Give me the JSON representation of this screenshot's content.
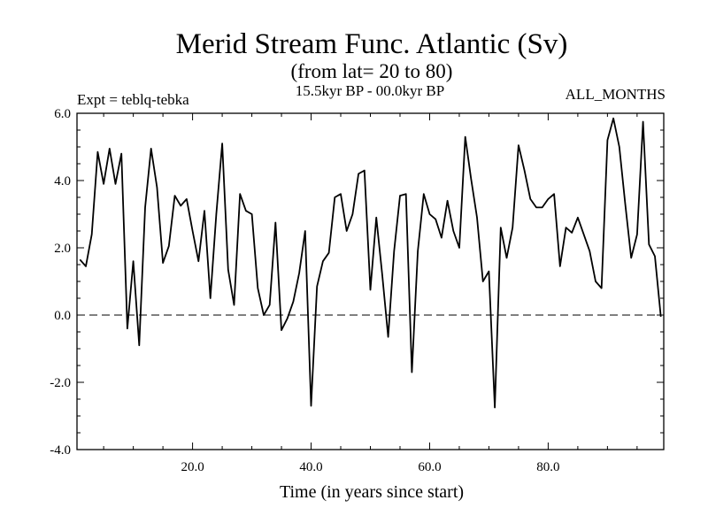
{
  "chart_data": {
    "type": "line",
    "title": "Merid Stream Func. Atlantic (Sv)",
    "subtitle": "(from lat= 20 to 80)",
    "experiment": "Expt = teblq-tebka",
    "period": "15.5kyr BP - 00.0kyr BP",
    "months": "ALL_MONTHS",
    "xlabel": "Time (in years since start)",
    "ylabel": "",
    "xlim": [
      0.5,
      99.5
    ],
    "ylim": [
      -4.0,
      6.0
    ],
    "x_ticks": [
      20.0,
      40.0,
      60.0,
      80.0
    ],
    "x_tick_labels": [
      "20.0",
      "40.0",
      "60.0",
      "80.0"
    ],
    "y_ticks": [
      -4.0,
      -2.0,
      0.0,
      2.0,
      4.0,
      6.0
    ],
    "y_tick_labels": [
      "-4.0",
      "-2.0",
      "0.0",
      "2.0",
      "4.0",
      "6.0"
    ],
    "reference_line": {
      "y": 0.0,
      "style": "dashed"
    },
    "series": [
      {
        "name": "teblq-tebka",
        "x": [
          1,
          2,
          3,
          4,
          5,
          6,
          7,
          8,
          9,
          10,
          11,
          12,
          13,
          14,
          15,
          16,
          17,
          18,
          19,
          20,
          21,
          22,
          23,
          24,
          25,
          26,
          27,
          28,
          29,
          30,
          31,
          32,
          33,
          34,
          35,
          36,
          37,
          38,
          39,
          40,
          41,
          42,
          43,
          44,
          45,
          46,
          47,
          48,
          49,
          50,
          51,
          52,
          53,
          54,
          55,
          56,
          57,
          58,
          59,
          60,
          61,
          62,
          63,
          64,
          65,
          66,
          67,
          68,
          69,
          70,
          71,
          72,
          73,
          74,
          75,
          76,
          77,
          78,
          79,
          80,
          81,
          82,
          83,
          84,
          85,
          86,
          87,
          88,
          89,
          90,
          91,
          92,
          93,
          94,
          95,
          96,
          97,
          98,
          99
        ],
        "values": [
          1.65,
          1.45,
          2.4,
          4.85,
          3.9,
          4.95,
          3.9,
          4.8,
          -0.4,
          1.6,
          -0.9,
          3.2,
          4.95,
          3.8,
          1.55,
          2.05,
          3.55,
          3.25,
          3.45,
          2.5,
          1.6,
          3.1,
          0.5,
          3.0,
          5.1,
          1.35,
          0.3,
          3.6,
          3.1,
          3.0,
          0.8,
          0.0,
          0.3,
          2.75,
          -0.45,
          -0.1,
          0.4,
          1.25,
          2.5,
          -2.7,
          0.85,
          1.6,
          1.85,
          3.5,
          3.6,
          2.5,
          3.0,
          4.2,
          4.3,
          0.75,
          2.9,
          1.2,
          -0.65,
          1.9,
          3.55,
          3.6,
          -1.7,
          1.9,
          3.6,
          3.0,
          2.85,
          2.3,
          3.4,
          2.5,
          2.0,
          5.3,
          4.05,
          2.9,
          1.0,
          1.3,
          -2.75,
          2.6,
          1.7,
          2.6,
          5.05,
          4.3,
          3.45,
          3.2,
          3.2,
          3.45,
          3.6,
          1.45,
          2.6,
          2.45,
          2.9,
          2.4,
          1.9,
          1.0,
          0.8,
          5.2,
          5.85,
          5.0,
          3.3,
          1.7,
          2.4,
          5.75,
          2.1,
          1.75,
          -0.05
        ]
      }
    ]
  }
}
